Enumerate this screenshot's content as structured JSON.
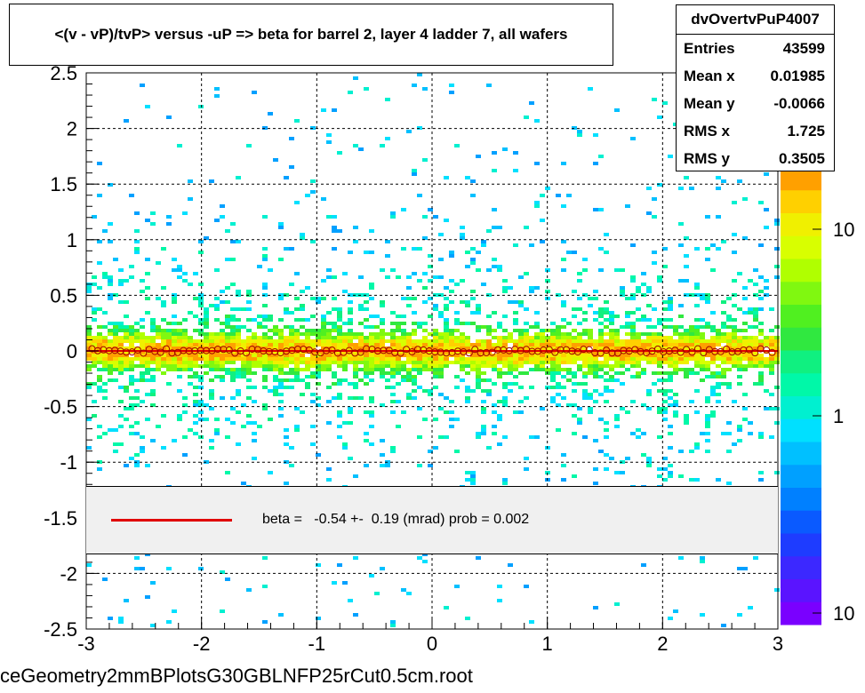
{
  "title": "<(v - vP)/tvP> versus  -uP => beta for barrel 2, layer 4 ladder 7, all wafers",
  "stats": {
    "name": "dvOvertvPuP4007",
    "rows": [
      {
        "label": "Entries",
        "value": "43599"
      },
      {
        "label": "Mean x",
        "value": "0.01985"
      },
      {
        "label": "Mean y",
        "value": "-0.0066"
      },
      {
        "label": "RMS x",
        "value": "1.725"
      },
      {
        "label": "RMS y",
        "value": "0.3505"
      }
    ]
  },
  "fit": {
    "text": "beta =   -0.54 +-  0.19 (mrad) prob = 0.002",
    "line_color": "#e00000"
  },
  "footer": "ceGeometry2mmBPlotsG30GBLNFP25rCut0.5cm.root",
  "chart_data": {
    "type": "heatmap",
    "xlim": [
      -3,
      3
    ],
    "ylim": [
      -2.5,
      2.5
    ],
    "x_ticks": [
      "-3",
      "-2",
      "-1",
      "0",
      "1",
      "2",
      "3"
    ],
    "y_ticks": [
      "-2.5",
      "-2",
      "-1.5",
      "-1",
      "-0.5",
      "0",
      "0.5",
      "1",
      "1.5",
      "2",
      "2.5"
    ],
    "grid": true,
    "colorbar": {
      "scale": "log",
      "tick_labels": [
        "10",
        "1",
        "10"
      ],
      "colors": [
        "#7a00ff",
        "#5a14ff",
        "#3c28ff",
        "#1e3cff",
        "#0a5aff",
        "#0080ff",
        "#00a0ff",
        "#00c0ff",
        "#00e0ff",
        "#00f0d0",
        "#00f8a8",
        "#10f080",
        "#30e840",
        "#50f020",
        "#80f810",
        "#b0ff00",
        "#d8ff00",
        "#f0f000",
        "#ffd000",
        "#ffa000"
      ]
    },
    "profile": {
      "marker": "open-circle",
      "color": "#a00000",
      "line_color": "#e00000",
      "x_range": [
        -2.95,
        2.95
      ],
      "y_mean": 0.0,
      "y_jitter": 0.02
    },
    "density": {
      "core_sigma": 0.12,
      "halo_sigma": 0.55,
      "halo_fraction": 0.25,
      "total_entries": 43599
    }
  }
}
